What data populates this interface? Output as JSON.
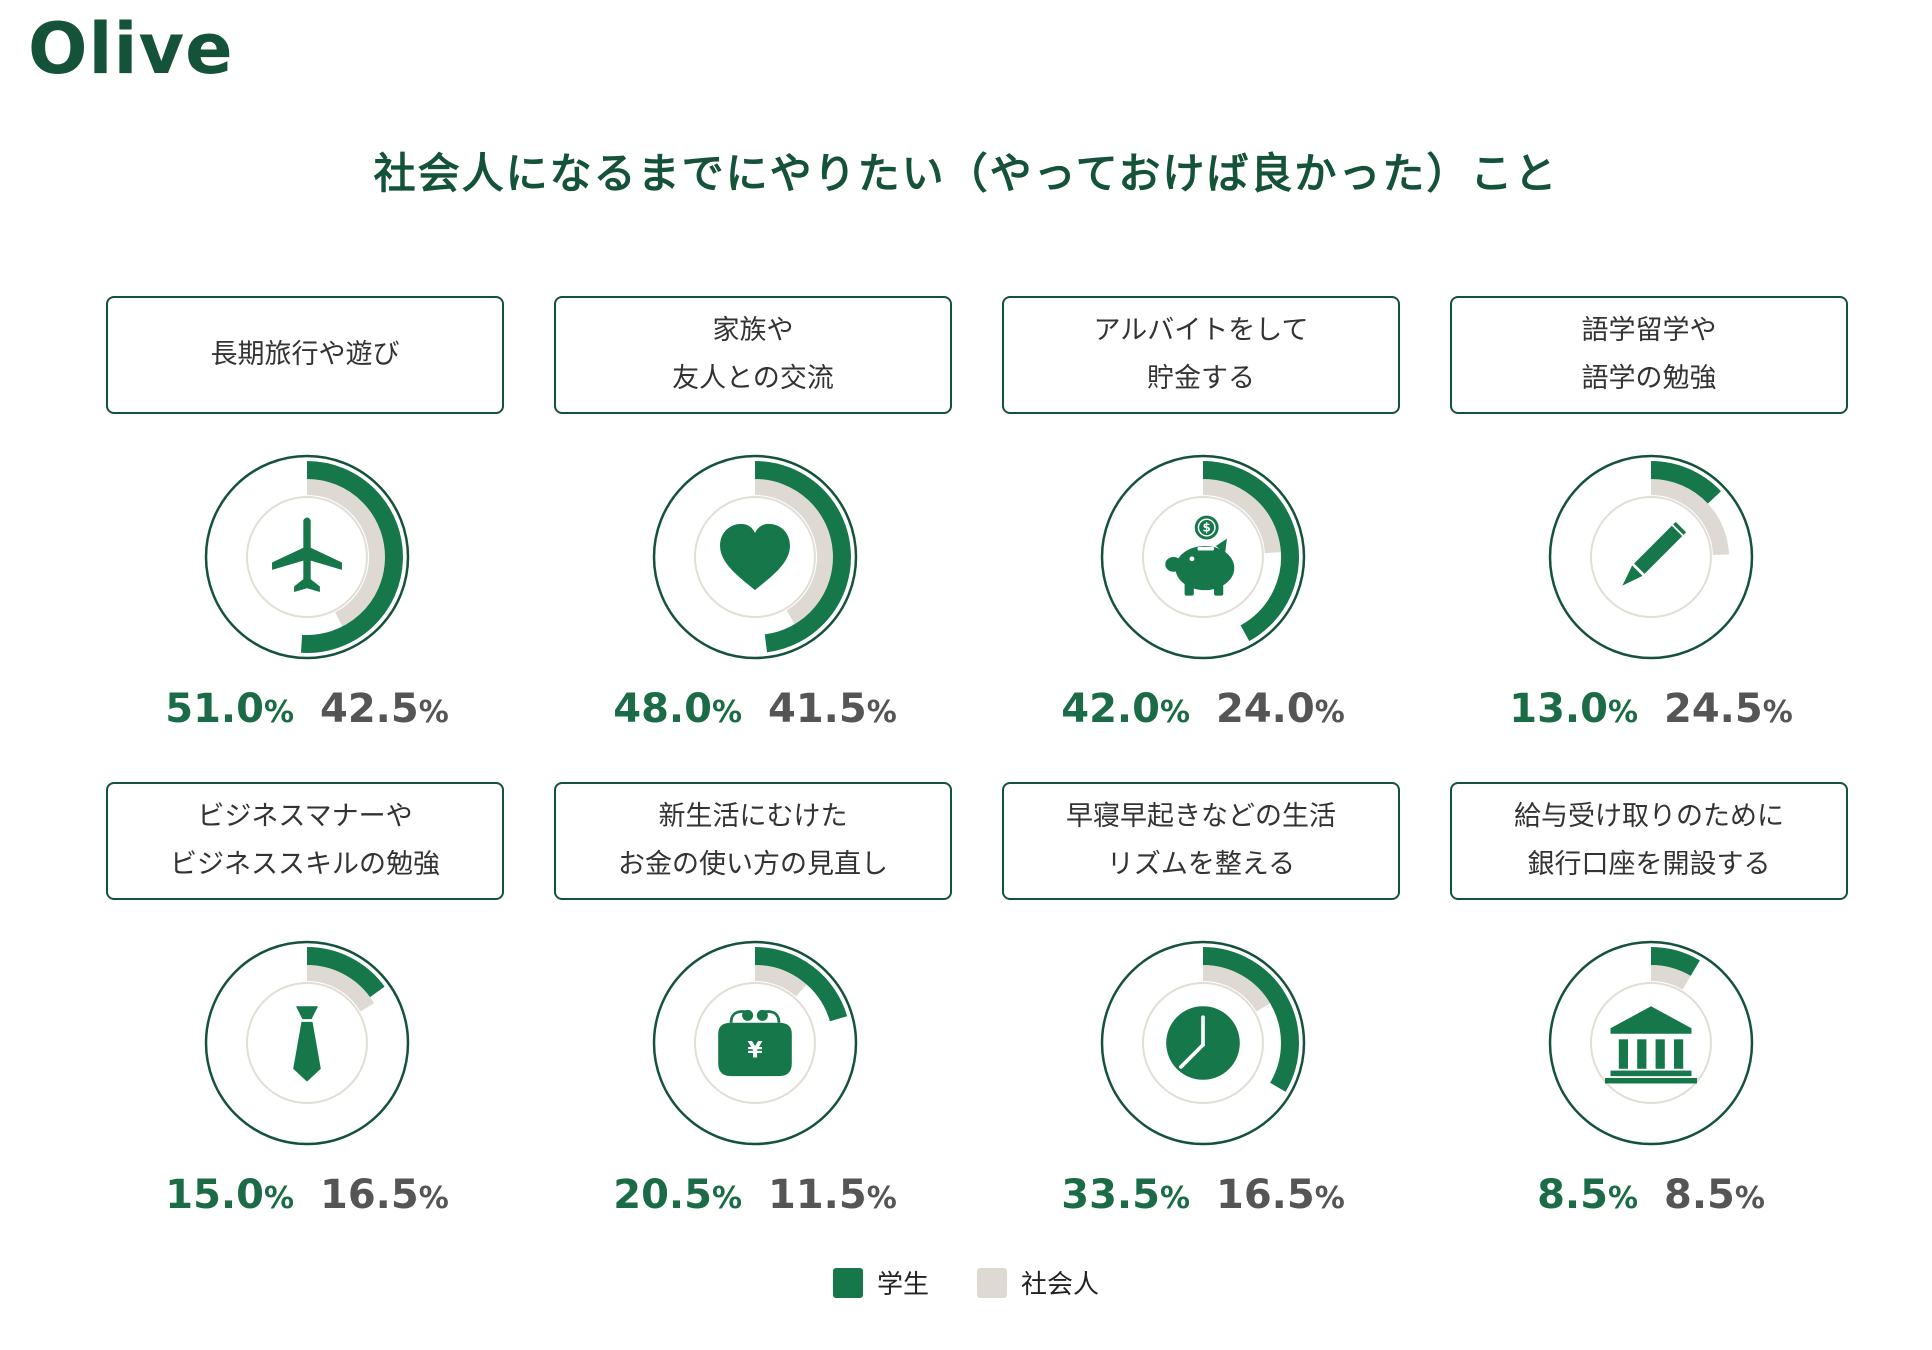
{
  "brand": {
    "logo": "Olive"
  },
  "colors": {
    "student": "#15774a",
    "adult": "#dedad3",
    "outline": "#15523a",
    "inner": "#e2ded6",
    "icon": "#15774a"
  },
  "chart_data": {
    "type": "donut",
    "title": "社会人になるまでにやりたい（やっておけば良かった）こと",
    "series_names": [
      "学生",
      "社会人"
    ],
    "unit": "%",
    "items": [
      {
        "label": "長期旅行や遊び",
        "student": 51.0,
        "adult": 42.5,
        "student_text": "51.0",
        "adult_text": "42.5",
        "icon": "airplane-icon"
      },
      {
        "label": "家族や\n友人との交流",
        "student": 48.0,
        "adult": 41.5,
        "student_text": "48.0",
        "adult_text": "41.5",
        "icon": "heart-icon"
      },
      {
        "label": "アルバイトをして\n貯金する",
        "student": 42.0,
        "adult": 24.0,
        "student_text": "42.0",
        "adult_text": "24.0",
        "icon": "piggy-bank-icon"
      },
      {
        "label": "語学留学や\n語学の勉強",
        "student": 13.0,
        "adult": 24.5,
        "student_text": "13.0",
        "adult_text": "24.5",
        "icon": "pencil-icon"
      },
      {
        "label": "ビジネスマナーや\nビジネススキルの勉強",
        "student": 15.0,
        "adult": 16.5,
        "student_text": "15.0",
        "adult_text": "16.5",
        "icon": "necktie-icon"
      },
      {
        "label": "新生活にむけた\nお金の使い方の見直し",
        "student": 20.5,
        "adult": 11.5,
        "student_text": "20.5",
        "adult_text": "11.5",
        "icon": "yen-purse-icon"
      },
      {
        "label": "早寝早起きなどの生活\nリズムを整える",
        "student": 33.5,
        "adult": 16.5,
        "student_text": "33.5",
        "adult_text": "16.5",
        "icon": "clock-icon"
      },
      {
        "label": "給与受け取りのために\n銀行口座を開設する",
        "student": 8.5,
        "adult": 8.5,
        "student_text": "8.5",
        "adult_text": "8.5",
        "icon": "bank-icon"
      }
    ],
    "icon_text": {
      "dollar": "$",
      "yen": "¥"
    }
  }
}
